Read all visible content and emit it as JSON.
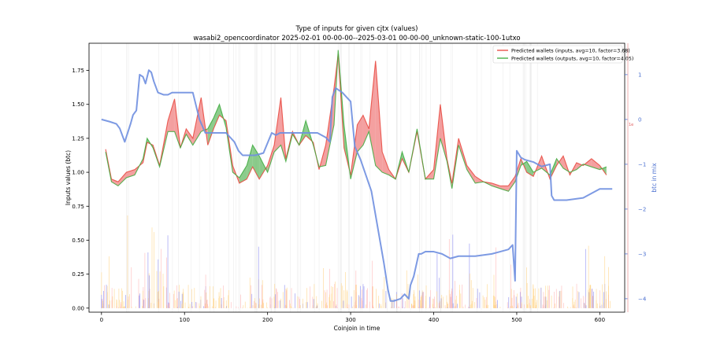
{
  "chart_data": {
    "type": "line",
    "title": "Type of inputs for given cjtx (values)",
    "subtitle": "wasabi2_opencoordinator 2025-02-01 00-00-00--2025-03-01 00-00-00_unknown-static-100-1utxo",
    "xlabel": "Coinjoin in time",
    "ylabel": "Inputs values (btc)",
    "y2label": "btc in mix",
    "xlim": [
      -15,
      630
    ],
    "ylim": [
      -0.03,
      1.95
    ],
    "y2lim": [
      -4.3,
      1.7
    ],
    "xticks": [
      0,
      100,
      200,
      300,
      400,
      500,
      600
    ],
    "yticks": [
      0.0,
      0.25,
      0.5,
      0.75,
      1.0,
      1.25,
      1.5,
      1.75
    ],
    "y2ticks": [
      -4,
      -3,
      -2,
      -1,
      0,
      1
    ],
    "xtick_labels": [
      "0",
      "100",
      "200",
      "300",
      "400",
      "500",
      "600"
    ],
    "ytick_labels": [
      "0.00",
      "0.25",
      "0.50",
      "0.75",
      "1.00",
      "1.25",
      "1.50",
      "1.75"
    ],
    "y2tick_labels": [
      "−4",
      "−3",
      "−2",
      "−1",
      "0",
      "1"
    ],
    "right_marker_label": "1e",
    "grid": false,
    "legend_position": "top-right",
    "colors": {
      "inputs": "#e8453c",
      "outputs": "#3caa3c",
      "fill_inputs": "#f08080",
      "fill_outputs": "#66bb66",
      "mix": "#6f8fe0",
      "bars_a": "#ffd27f",
      "bars_b": "#ffb0b0",
      "bars_c": "#8080f0",
      "vlines": "#cfcfcf"
    },
    "series": [
      {
        "name": "Predicted wallets (inputs, avg=10, factor=3.68)",
        "x": [
          5,
          12,
          20,
          30,
          40,
          50,
          55,
          62,
          70,
          80,
          88,
          95,
          102,
          110,
          120,
          128,
          135,
          142,
          150,
          158,
          166,
          175,
          182,
          190,
          200,
          208,
          216,
          222,
          230,
          238,
          246,
          255,
          262,
          270,
          280,
          285,
          292,
          300,
          308,
          315,
          322,
          330,
          338,
          346,
          354,
          362,
          370,
          380,
          390,
          400,
          408,
          416,
          422,
          430,
          440,
          450,
          460,
          470,
          480,
          490,
          498,
          505,
          512,
          520,
          530,
          540,
          548,
          556,
          564,
          572,
          580,
          590,
          600,
          608
        ],
        "values": [
          1.17,
          0.95,
          0.93,
          1.0,
          1.02,
          1.07,
          1.22,
          1.2,
          1.05,
          1.38,
          1.54,
          1.18,
          1.32,
          1.25,
          1.55,
          1.2,
          1.32,
          1.42,
          1.38,
          1.05,
          0.92,
          0.95,
          1.04,
          0.95,
          1.05,
          1.2,
          1.55,
          1.1,
          1.3,
          1.2,
          1.27,
          1.22,
          1.02,
          1.2,
          1.62,
          1.87,
          1.18,
          0.98,
          1.35,
          1.42,
          1.32,
          1.82,
          1.15,
          1.02,
          0.95,
          1.1,
          1.0,
          1.3,
          0.95,
          1.02,
          1.5,
          1.1,
          0.92,
          1.25,
          1.05,
          0.97,
          0.93,
          0.92,
          0.9,
          0.9,
          0.97,
          1.1,
          1.0,
          0.97,
          1.12,
          0.95,
          1.05,
          1.12,
          0.98,
          1.07,
          1.05,
          1.1,
          1.05,
          0.98
        ]
      },
      {
        "name": "Predicted wallets (outputs, avg=10, factor=4.05)",
        "x": [
          5,
          12,
          20,
          30,
          40,
          50,
          55,
          62,
          70,
          80,
          88,
          95,
          102,
          110,
          120,
          128,
          135,
          142,
          150,
          158,
          166,
          175,
          182,
          190,
          200,
          208,
          216,
          222,
          230,
          238,
          246,
          255,
          262,
          270,
          280,
          285,
          292,
          300,
          308,
          315,
          322,
          330,
          338,
          346,
          354,
          362,
          370,
          380,
          390,
          400,
          408,
          416,
          422,
          430,
          440,
          450,
          460,
          470,
          480,
          490,
          498,
          505,
          512,
          520,
          530,
          540,
          548,
          556,
          564,
          572,
          580,
          590,
          600,
          608
        ],
        "values": [
          1.15,
          0.93,
          0.9,
          0.96,
          0.98,
          1.1,
          1.25,
          1.18,
          1.04,
          1.3,
          1.3,
          1.18,
          1.28,
          1.2,
          1.3,
          1.32,
          1.4,
          1.5,
          1.33,
          1.0,
          0.96,
          1.05,
          1.2,
          1.12,
          1.0,
          1.15,
          1.2,
          1.08,
          1.28,
          1.2,
          1.38,
          1.2,
          1.04,
          1.05,
          1.35,
          1.9,
          1.35,
          0.95,
          1.15,
          1.2,
          1.3,
          1.05,
          1.0,
          0.98,
          0.95,
          1.15,
          1.0,
          1.32,
          0.95,
          0.95,
          1.25,
          1.08,
          0.88,
          1.2,
          1.02,
          0.92,
          0.93,
          0.9,
          0.88,
          0.86,
          0.93,
          1.05,
          1.08,
          1.0,
          1.03,
          0.98,
          1.1,
          1.03,
          1.0,
          1.02,
          1.06,
          1.04,
          1.02,
          1.04
        ]
      },
      {
        "name": "btc in mix",
        "axis": "right",
        "x": [
          0,
          10,
          18,
          22,
          28,
          35,
          38,
          42,
          46,
          50,
          53,
          57,
          60,
          63,
          68,
          75,
          80,
          85,
          90,
          110,
          118,
          125,
          140,
          150,
          160,
          165,
          170,
          185,
          195,
          205,
          210,
          215,
          225,
          260,
          270,
          275,
          278,
          282,
          290,
          295,
          300,
          305,
          312,
          325,
          340,
          345,
          348,
          352,
          360,
          365,
          370,
          372,
          376,
          382,
          385,
          390,
          400,
          410,
          420,
          430,
          450,
          470,
          480,
          490,
          495,
          498,
          500,
          505,
          510,
          520,
          530,
          540,
          542,
          545,
          560,
          580,
          600,
          615
        ],
        "values": [
          0,
          -0.05,
          -0.1,
          -0.2,
          -0.5,
          -0.1,
          0.1,
          0.2,
          1.0,
          0.95,
          0.8,
          1.1,
          1.05,
          0.85,
          0.6,
          0.55,
          0.55,
          0.6,
          0.6,
          0.6,
          0,
          -0.3,
          -0.3,
          -0.3,
          -0.5,
          -0.7,
          -0.8,
          -0.8,
          -0.75,
          -0.3,
          -0.35,
          -0.3,
          -0.3,
          -0.3,
          -0.4,
          -0.5,
          0.5,
          0.7,
          0.6,
          0.5,
          0.4,
          -0.6,
          -0.9,
          -1.6,
          -3.2,
          -3.8,
          -4.05,
          -4.05,
          -4.0,
          -3.9,
          -4.0,
          -3.7,
          -3.5,
          -3.0,
          -3.0,
          -2.95,
          -2.95,
          -3.0,
          -3.1,
          -3.05,
          -3.05,
          -3.0,
          -2.95,
          -2.9,
          -2.8,
          -3.6,
          -0.7,
          -0.85,
          -0.9,
          -0.95,
          -1.05,
          -1.0,
          -1.7,
          -1.8,
          -1.8,
          -1.75,
          -1.55,
          -1.55
        ]
      }
    ]
  }
}
